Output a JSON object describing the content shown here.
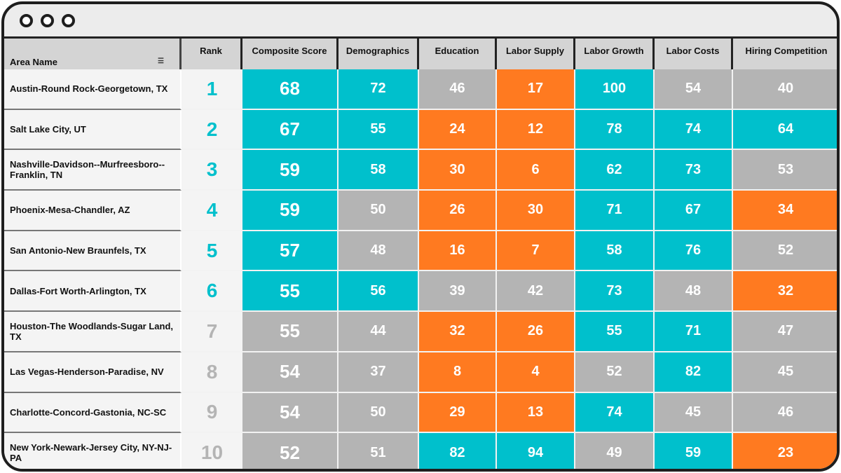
{
  "colors": {
    "t": "#00c0cc",
    "g": "#b4b4b4",
    "o": "#ff7a20",
    "rank_top": "#00c0cc",
    "rank_rest": "#b4b4b4"
  },
  "header": {
    "area_name": "Area Name",
    "sort_icon": "sort-icon",
    "columns": [
      "Rank",
      "Composite Score",
      "Demographics",
      "Education",
      "Labor Supply",
      "Labor Growth",
      "Labor Costs",
      "Hiring Competition"
    ]
  },
  "rows": [
    {
      "name": "Austin-Round Rock-Georgetown, TX",
      "rank": "1",
      "values": [
        "68",
        "72",
        "46",
        "17",
        "100",
        "54",
        "40"
      ],
      "colors": [
        "t",
        "t",
        "g",
        "o",
        "t",
        "g",
        "g"
      ]
    },
    {
      "name": "Salt Lake City, UT",
      "rank": "2",
      "values": [
        "67",
        "55",
        "24",
        "12",
        "78",
        "74",
        "64"
      ],
      "colors": [
        "t",
        "t",
        "o",
        "o",
        "t",
        "t",
        "t"
      ]
    },
    {
      "name": "Nashville-Davidson--Murfreesboro--Franklin, TN",
      "rank": "3",
      "values": [
        "59",
        "58",
        "30",
        "6",
        "62",
        "73",
        "53"
      ],
      "colors": [
        "t",
        "t",
        "o",
        "o",
        "t",
        "t",
        "g"
      ]
    },
    {
      "name": "Phoenix-Mesa-Chandler, AZ",
      "rank": "4",
      "values": [
        "59",
        "50",
        "26",
        "30",
        "71",
        "67",
        "34"
      ],
      "colors": [
        "t",
        "g",
        "o",
        "o",
        "t",
        "t",
        "o"
      ]
    },
    {
      "name": "San Antonio-New Braunfels, TX",
      "rank": "5",
      "values": [
        "57",
        "48",
        "16",
        "7",
        "58",
        "76",
        "52"
      ],
      "colors": [
        "t",
        "g",
        "o",
        "o",
        "t",
        "t",
        "g"
      ]
    },
    {
      "name": "Dallas-Fort Worth-Arlington, TX",
      "rank": "6",
      "values": [
        "55",
        "56",
        "39",
        "42",
        "73",
        "48",
        "32"
      ],
      "colors": [
        "t",
        "t",
        "g",
        "g",
        "t",
        "g",
        "o"
      ]
    },
    {
      "name": "Houston-The Woodlands-Sugar Land, TX",
      "rank": "7",
      "values": [
        "55",
        "44",
        "32",
        "26",
        "55",
        "71",
        "47"
      ],
      "colors": [
        "g",
        "g",
        "o",
        "o",
        "t",
        "t",
        "g"
      ]
    },
    {
      "name": "Las Vegas-Henderson-Paradise, NV",
      "rank": "8",
      "values": [
        "54",
        "37",
        "8",
        "4",
        "52",
        "82",
        "45"
      ],
      "colors": [
        "g",
        "g",
        "o",
        "o",
        "g",
        "t",
        "g"
      ]
    },
    {
      "name": "Charlotte-Concord-Gastonia, NC-SC",
      "rank": "9",
      "values": [
        "54",
        "50",
        "29",
        "13",
        "74",
        "45",
        "46"
      ],
      "colors": [
        "g",
        "g",
        "o",
        "o",
        "t",
        "g",
        "g"
      ]
    },
    {
      "name": "New York-Newark-Jersey City, NY-NJ-PA",
      "rank": "10",
      "values": [
        "52",
        "51",
        "82",
        "94",
        "49",
        "59",
        "23"
      ],
      "colors": [
        "g",
        "g",
        "t",
        "t",
        "g",
        "t",
        "o"
      ]
    }
  ]
}
